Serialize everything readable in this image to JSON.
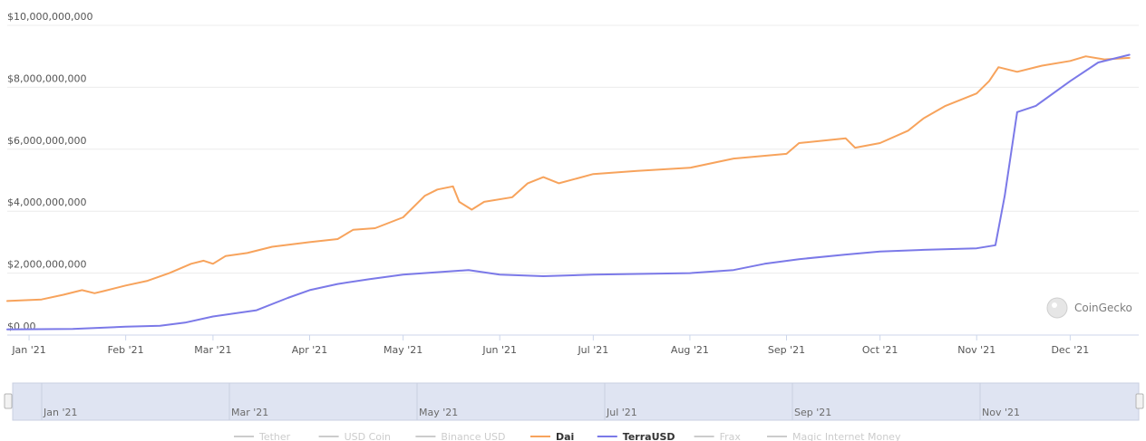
{
  "chart_data": {
    "type": "line",
    "y_axis": {
      "min": 0,
      "max": 10000000000,
      "ticks": [
        {
          "value": 0,
          "label": "$0.00"
        },
        {
          "value": 2000000000,
          "label": "$2,000,000,000"
        },
        {
          "value": 4000000000,
          "label": "$4,000,000,000"
        },
        {
          "value": 6000000000,
          "label": "$6,000,000,000"
        },
        {
          "value": 8000000000,
          "label": "$8,000,000,000"
        },
        {
          "value": 10000000000,
          "label": "$10,000,000,000"
        }
      ]
    },
    "x_axis": {
      "range": [
        "2020-12-25",
        "2021-12-23"
      ],
      "ticks": [
        {
          "date": "2021-01-01",
          "label": "Jan '21"
        },
        {
          "date": "2021-02-01",
          "label": "Feb '21"
        },
        {
          "date": "2021-03-01",
          "label": "Mar '21"
        },
        {
          "date": "2021-04-01",
          "label": "Apr '21"
        },
        {
          "date": "2021-05-01",
          "label": "May '21"
        },
        {
          "date": "2021-06-01",
          "label": "Jun '21"
        },
        {
          "date": "2021-07-01",
          "label": "Jul '21"
        },
        {
          "date": "2021-08-01",
          "label": "Aug '21"
        },
        {
          "date": "2021-09-01",
          "label": "Sep '21"
        },
        {
          "date": "2021-10-01",
          "label": "Oct '21"
        },
        {
          "date": "2021-11-01",
          "label": "Nov '21"
        },
        {
          "date": "2021-12-01",
          "label": "Dec '21"
        }
      ]
    },
    "grid": true,
    "series": [
      {
        "name": "Dai",
        "color": "#f7a35c",
        "points": [
          [
            "2020-12-25",
            1100000000
          ],
          [
            "2021-01-05",
            1150000000
          ],
          [
            "2021-01-12",
            1300000000
          ],
          [
            "2021-01-18",
            1450000000
          ],
          [
            "2021-01-22",
            1350000000
          ],
          [
            "2021-01-25",
            1420000000
          ],
          [
            "2021-02-01",
            1600000000
          ],
          [
            "2021-02-08",
            1750000000
          ],
          [
            "2021-02-15",
            2000000000
          ],
          [
            "2021-02-22",
            2300000000
          ],
          [
            "2021-02-26",
            2400000000
          ],
          [
            "2021-03-01",
            2300000000
          ],
          [
            "2021-03-05",
            2550000000
          ],
          [
            "2021-03-12",
            2650000000
          ],
          [
            "2021-03-20",
            2850000000
          ],
          [
            "2021-04-01",
            3000000000
          ],
          [
            "2021-04-10",
            3100000000
          ],
          [
            "2021-04-15",
            3400000000
          ],
          [
            "2021-04-22",
            3450000000
          ],
          [
            "2021-05-01",
            3800000000
          ],
          [
            "2021-05-08",
            4500000000
          ],
          [
            "2021-05-12",
            4700000000
          ],
          [
            "2021-05-17",
            4800000000
          ],
          [
            "2021-05-19",
            4300000000
          ],
          [
            "2021-05-23",
            4050000000
          ],
          [
            "2021-05-27",
            4300000000
          ],
          [
            "2021-06-05",
            4450000000
          ],
          [
            "2021-06-10",
            4900000000
          ],
          [
            "2021-06-15",
            5100000000
          ],
          [
            "2021-06-20",
            4900000000
          ],
          [
            "2021-07-01",
            5200000000
          ],
          [
            "2021-07-15",
            5300000000
          ],
          [
            "2021-08-01",
            5400000000
          ],
          [
            "2021-08-15",
            5700000000
          ],
          [
            "2021-09-01",
            5850000000
          ],
          [
            "2021-09-05",
            6200000000
          ],
          [
            "2021-09-20",
            6350000000
          ],
          [
            "2021-09-23",
            6050000000
          ],
          [
            "2021-10-01",
            6200000000
          ],
          [
            "2021-10-10",
            6600000000
          ],
          [
            "2021-10-15",
            7000000000
          ],
          [
            "2021-10-22",
            7400000000
          ],
          [
            "2021-11-01",
            7800000000
          ],
          [
            "2021-11-05",
            8200000000
          ],
          [
            "2021-11-08",
            8650000000
          ],
          [
            "2021-11-14",
            8500000000
          ],
          [
            "2021-11-22",
            8700000000
          ],
          [
            "2021-12-01",
            8850000000
          ],
          [
            "2021-12-06",
            9000000000
          ],
          [
            "2021-12-12",
            8900000000
          ],
          [
            "2021-12-20",
            8950000000
          ]
        ]
      },
      {
        "name": "TerraUSD",
        "color": "#7b79e8",
        "points": [
          [
            "2020-12-25",
            180000000
          ],
          [
            "2021-01-15",
            200000000
          ],
          [
            "2021-02-01",
            270000000
          ],
          [
            "2021-02-12",
            300000000
          ],
          [
            "2021-02-20",
            400000000
          ],
          [
            "2021-03-01",
            600000000
          ],
          [
            "2021-03-15",
            800000000
          ],
          [
            "2021-03-25",
            1200000000
          ],
          [
            "2021-04-01",
            1450000000
          ],
          [
            "2021-04-10",
            1650000000
          ],
          [
            "2021-04-20",
            1800000000
          ],
          [
            "2021-05-01",
            1950000000
          ],
          [
            "2021-05-15",
            2050000000
          ],
          [
            "2021-05-22",
            2100000000
          ],
          [
            "2021-06-01",
            1950000000
          ],
          [
            "2021-06-15",
            1900000000
          ],
          [
            "2021-07-01",
            1950000000
          ],
          [
            "2021-08-01",
            2000000000
          ],
          [
            "2021-08-15",
            2100000000
          ],
          [
            "2021-08-25",
            2300000000
          ],
          [
            "2021-09-05",
            2450000000
          ],
          [
            "2021-09-20",
            2600000000
          ],
          [
            "2021-10-01",
            2700000000
          ],
          [
            "2021-10-15",
            2750000000
          ],
          [
            "2021-11-01",
            2800000000
          ],
          [
            "2021-11-07",
            2900000000
          ],
          [
            "2021-11-10",
            4500000000
          ],
          [
            "2021-11-14",
            7200000000
          ],
          [
            "2021-11-20",
            7400000000
          ],
          [
            "2021-12-01",
            8200000000
          ],
          [
            "2021-12-10",
            8800000000
          ],
          [
            "2021-12-20",
            9050000000
          ]
        ]
      }
    ],
    "navigator": {
      "ticks": [
        "Jan '21",
        "Mar '21",
        "May '21",
        "Jul '21",
        "Sep '21",
        "Nov '21"
      ]
    },
    "legend": {
      "placement": "bottom",
      "items": [
        {
          "name": "Tether",
          "active": false,
          "color": "#cccccc"
        },
        {
          "name": "USD Coin",
          "active": false,
          "color": "#cccccc"
        },
        {
          "name": "Binance USD",
          "active": false,
          "color": "#cccccc"
        },
        {
          "name": "Dai",
          "active": true,
          "color": "#f7a35c"
        },
        {
          "name": "TerraUSD",
          "active": true,
          "color": "#7b79e8"
        },
        {
          "name": "Frax",
          "active": false,
          "color": "#cccccc"
        },
        {
          "name": "Magic Internet Money",
          "active": false,
          "color": "#cccccc"
        }
      ]
    },
    "brand": "CoinGecko"
  }
}
